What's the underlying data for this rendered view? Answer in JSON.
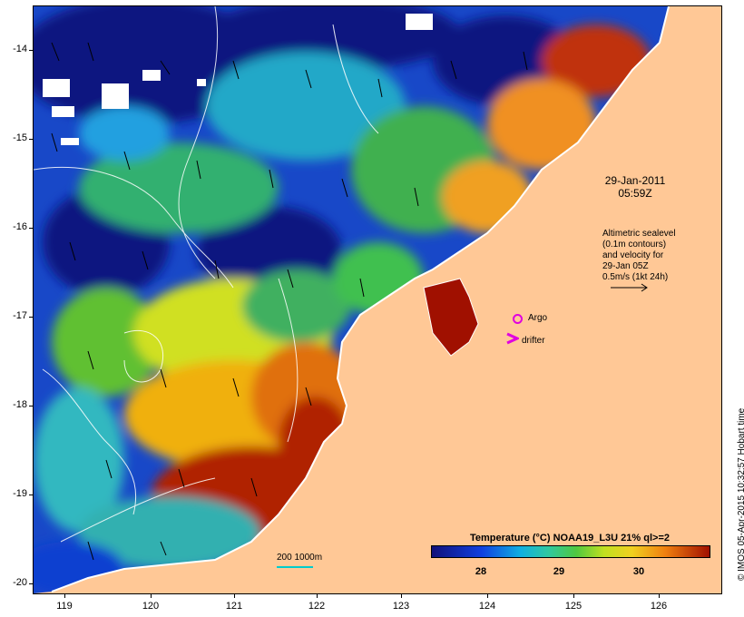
{
  "map": {
    "y_axis_labels": [
      "-14",
      "-15",
      "-16",
      "-17",
      "-18",
      "-19",
      "-20"
    ],
    "x_axis_labels": [
      "119",
      "120",
      "121",
      "122",
      "123",
      "124",
      "125",
      "126"
    ],
    "timestamp_date": "29-Jan-2011",
    "timestamp_time": "05:59Z",
    "info_lines": [
      "Altimetric sealevel",
      "(0.1m contours)",
      "and velocity for",
      "29-Jan 05Z",
      "0.5m/s (1kt 24h)"
    ],
    "argo_label": "Argo",
    "drifter_label": "drifter",
    "colorbar_title": "Temperature (°C) NOAA19_L3U 21% ql>=2",
    "colorbar_ticks": [
      "28",
      "29",
      "30"
    ],
    "scale_label": "200  1000m",
    "credit": "© IMOS 05-Apr-2015 10:32:57 Hobart time",
    "colors": {
      "land": "#ffc896",
      "deep_blue": "#0a1680",
      "argo": "#e000e0",
      "drifter": "#e000e0"
    }
  }
}
